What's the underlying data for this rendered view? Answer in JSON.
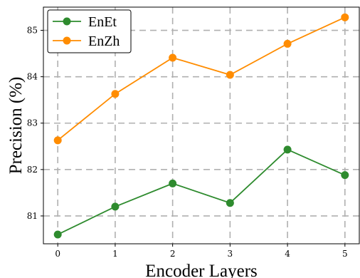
{
  "chart_data": {
    "type": "line",
    "xlabel": "Encoder Layers",
    "ylabel": "Precision (%)",
    "x": [
      0,
      1,
      2,
      3,
      4,
      5
    ],
    "xticks": [
      "0",
      "1",
      "2",
      "3",
      "4",
      "5"
    ],
    "yticks": [
      "81",
      "82",
      "83",
      "84",
      "85"
    ],
    "xlim": [
      -0.25,
      5.25
    ],
    "ylim": [
      80.4,
      85.5
    ],
    "grid": true,
    "legend": "top-left",
    "series": [
      {
        "name": "EnEt",
        "color": "#2e8b2e",
        "values": [
          80.6,
          81.2,
          81.7,
          81.28,
          82.43,
          81.88
        ]
      },
      {
        "name": "EnZh",
        "color": "#ff8c00",
        "values": [
          82.63,
          83.63,
          84.41,
          84.04,
          84.71,
          85.28
        ]
      }
    ]
  }
}
